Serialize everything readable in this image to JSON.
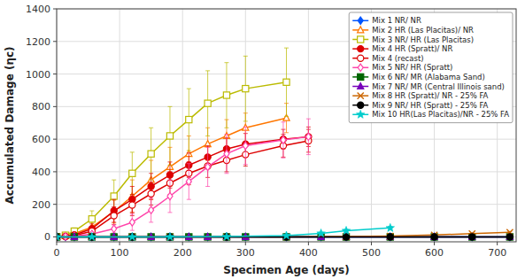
{
  "chart_data": {
    "type": "line",
    "xlabel": "Specimen Age (days)",
    "ylabel": "Accumulated Damage (ηᴄ)",
    "xlim": [
      0,
      730
    ],
    "ylim": [
      -30,
      1400
    ],
    "xticks": [
      0,
      100,
      200,
      300,
      400,
      500,
      600,
      700
    ],
    "yticks": [
      0,
      200,
      400,
      600,
      800,
      1000,
      1200,
      1400
    ],
    "grid": true,
    "legend": "upper right",
    "series": [
      {
        "name": "Mix 1 NR/ NR",
        "color": "#0055FF",
        "marker": "diamond",
        "x": [
          0,
          14,
          28,
          56,
          91,
          120,
          150,
          180,
          210,
          240,
          270,
          300,
          365,
          420,
          460,
          530,
          600,
          660,
          720
        ],
        "values": [
          0,
          0,
          0,
          0,
          0,
          0,
          0,
          0,
          0,
          0,
          0,
          0,
          0,
          0,
          0,
          0,
          0,
          0,
          0
        ]
      },
      {
        "name": "Mix 2 HR (Las Placitas)/ NR",
        "color": "#FF7700",
        "marker": "triangle-open",
        "x": [
          0,
          14,
          28,
          56,
          91,
          120,
          150,
          180,
          210,
          240,
          270,
          300,
          365
        ],
        "values": [
          0,
          5,
          20,
          60,
          155,
          250,
          350,
          430,
          510,
          570,
          620,
          670,
          730
        ],
        "yerr": [
          0,
          5,
          15,
          30,
          70,
          100,
          120,
          120,
          110,
          100,
          100,
          90,
          90
        ]
      },
      {
        "name": "Mix 3 NR/ HR (Las Placitas)",
        "color": "#BBBB00",
        "marker": "square-open",
        "x": [
          0,
          14,
          28,
          56,
          91,
          120,
          150,
          180,
          210,
          240,
          270,
          300,
          365
        ],
        "values": [
          0,
          10,
          35,
          110,
          250,
          390,
          510,
          620,
          720,
          820,
          870,
          910,
          950
        ],
        "yerr": [
          0,
          5,
          20,
          50,
          100,
          130,
          160,
          180,
          190,
          200,
          200,
          200,
          210
        ]
      },
      {
        "name": "Mix 4 HR (Spratt)/ NR",
        "color": "#DD0000",
        "marker": "circle",
        "x": [
          0,
          14,
          28,
          56,
          91,
          120,
          150,
          180,
          210,
          240,
          270,
          300,
          360,
          400
        ],
        "values": [
          0,
          3,
          12,
          50,
          160,
          230,
          310,
          380,
          440,
          490,
          540,
          570,
          600,
          615
        ],
        "yerr": [
          0,
          3,
          10,
          30,
          70,
          80,
          80,
          80,
          75,
          70,
          70,
          65,
          60,
          60
        ]
      },
      {
        "name": "Mix 4 (recast)",
        "color": "#DD0000",
        "marker": "circle-open",
        "x": [
          0,
          14,
          28,
          56,
          91,
          120,
          150,
          180,
          210,
          240,
          270,
          300,
          360,
          400
        ],
        "values": [
          0,
          2,
          8,
          35,
          130,
          195,
          265,
          330,
          390,
          435,
          470,
          505,
          560,
          590
        ],
        "yerr": [
          0,
          2,
          8,
          20,
          55,
          65,
          70,
          70,
          70,
          70,
          70,
          70,
          70,
          70
        ]
      },
      {
        "name": "Mix 5 NR/ HR (Spratt)",
        "color": "#FF44AA",
        "marker": "diamond-open",
        "x": [
          0,
          14,
          28,
          56,
          91,
          120,
          150,
          180,
          210,
          240,
          270,
          300,
          360,
          400
        ],
        "values": [
          0,
          2,
          5,
          18,
          50,
          90,
          165,
          250,
          340,
          430,
          510,
          560,
          595,
          615
        ],
        "yerr": [
          0,
          2,
          5,
          10,
          25,
          50,
          75,
          100,
          110,
          120,
          120,
          115,
          110,
          110
        ]
      },
      {
        "name": "Mix 6 NR/ MR (Alabama Sand)",
        "color": "#006600",
        "marker": "square",
        "x": [
          0,
          28,
          56,
          91,
          120,
          150,
          180,
          210,
          240,
          270,
          300,
          365,
          420,
          460,
          530,
          600,
          660,
          720
        ],
        "values": [
          0,
          0,
          0,
          0,
          0,
          0,
          0,
          0,
          0,
          0,
          0,
          0,
          0,
          0,
          0,
          0,
          0,
          0
        ]
      },
      {
        "name": "Mix 7 NR/ MR (Central Illinois sand)",
        "color": "#7700BB",
        "marker": "triangle",
        "x": [
          0,
          28,
          56,
          91,
          120,
          150,
          180,
          210,
          240,
          270,
          300,
          365,
          420,
          460,
          530,
          600,
          660,
          720
        ],
        "values": [
          0,
          0,
          0,
          0,
          0,
          0,
          0,
          0,
          0,
          0,
          0,
          0,
          0,
          0,
          0,
          0,
          0,
          0
        ]
      },
      {
        "name": "Mix 8 HR (Spratt)/ NR - 25% FA",
        "color": "#CC6600",
        "marker": "x",
        "x": [
          0,
          56,
          120,
          180,
          270,
          365,
          460,
          530,
          600,
          660,
          720
        ],
        "values": [
          0,
          0,
          0,
          0,
          0,
          0,
          2,
          5,
          12,
          20,
          28
        ],
        "yerr": [
          0,
          0,
          0,
          0,
          0,
          0,
          2,
          3,
          4,
          4,
          5
        ]
      },
      {
        "name": "Mix 9 NR/ HR (Spratt) - 25% FA",
        "color": "#000000",
        "marker": "circle",
        "x": [
          0,
          56,
          120,
          180,
          270,
          365,
          460,
          530,
          600,
          660,
          720
        ],
        "values": [
          0,
          0,
          0,
          0,
          0,
          0,
          0,
          0,
          0,
          0,
          0
        ]
      },
      {
        "name": "Mix 10 HR(Las Placitas)/NR - 25% FA",
        "color": "#00CCCC",
        "marker": "star",
        "x": [
          0,
          56,
          120,
          180,
          270,
          365,
          420,
          460,
          530
        ],
        "values": [
          0,
          0,
          0,
          0,
          2,
          8,
          22,
          38,
          55
        ],
        "yerr": [
          0,
          0,
          0,
          0,
          2,
          4,
          6,
          8,
          10
        ]
      }
    ]
  }
}
